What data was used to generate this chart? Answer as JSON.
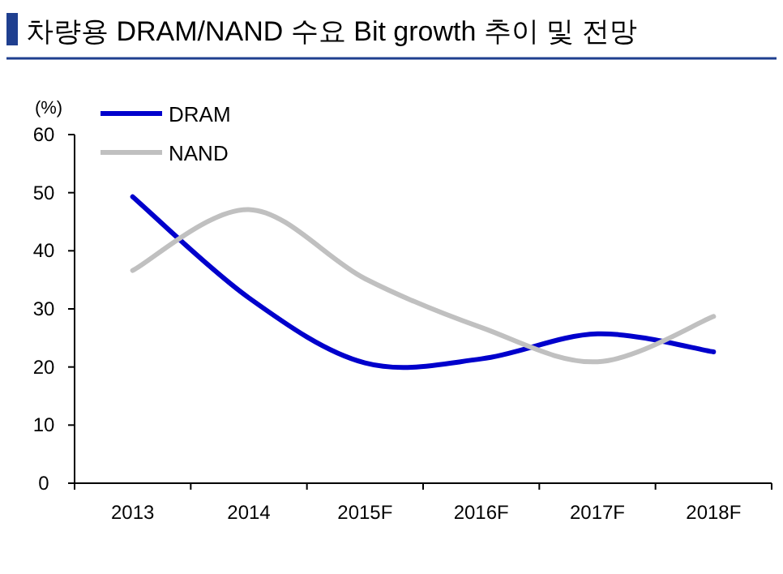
{
  "chart_data": {
    "type": "line",
    "title": "차량용 DRAM/NAND 수요 Bit growth 추이 및 전망",
    "ylabel": "(%)",
    "categories": [
      "2013",
      "2014",
      "2015F",
      "2016F",
      "2017F",
      "2018F"
    ],
    "series": [
      {
        "name": "DRAM",
        "color": "#0000cc",
        "values": [
          49.3,
          31.9,
          20.7,
          21.4,
          25.7,
          22.6
        ]
      },
      {
        "name": "NAND",
        "color": "#c0c0c0",
        "values": [
          36.6,
          47.1,
          35.2,
          26.8,
          20.9,
          28.7
        ]
      }
    ],
    "ylim": [
      0,
      60
    ],
    "yticks": [
      0,
      10,
      20,
      30,
      40,
      50,
      60
    ],
    "legend": "top left",
    "grid": false,
    "marker": "none",
    "line_style": "solid"
  }
}
